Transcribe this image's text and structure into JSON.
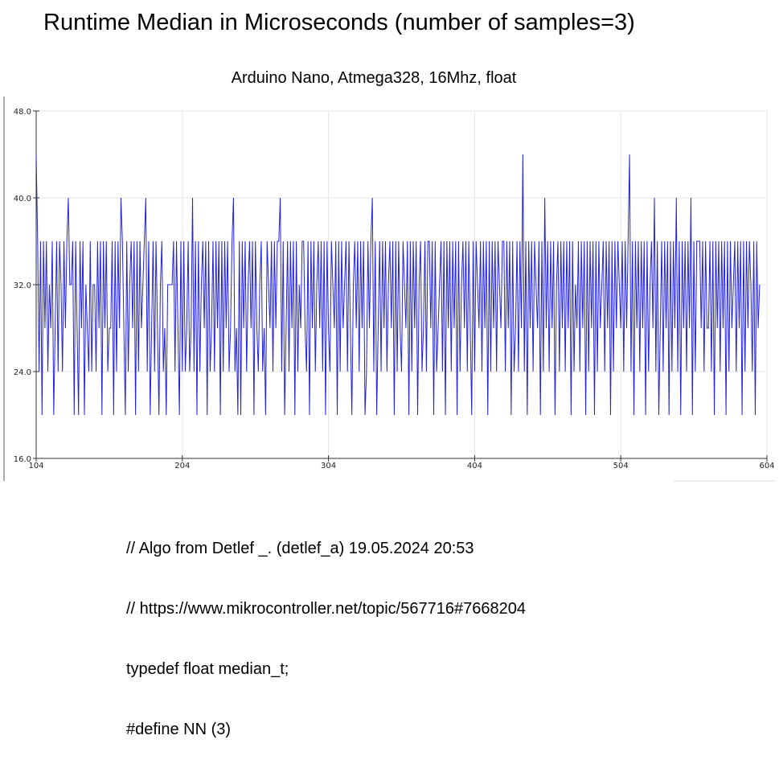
{
  "page": {
    "title": "Runtime Median in Microseconds (number of samples=3)"
  },
  "chart_data": {
    "type": "line",
    "title": "Arduino Nano, Atmega328, 16Mhz, float",
    "xlabel": "",
    "ylabel": "",
    "xlim": [
      104,
      604
    ],
    "ylim": [
      16,
      48
    ],
    "x_ticks": [
      "104",
      "204",
      "304",
      "404",
      "504",
      "604"
    ],
    "y_ticks": [
      "16.0",
      "24.0",
      "32.0",
      "40.0",
      "48.0"
    ],
    "grid": true,
    "line_color": "#2222dd",
    "series": [
      {
        "x_start": 104,
        "x_step": 1,
        "values": [
          44,
          36,
          24,
          36,
          20,
          36,
          28,
          36,
          24,
          32,
          28,
          36,
          20,
          28,
          36,
          24,
          36,
          32,
          24,
          36,
          28,
          36,
          40,
          32,
          32,
          36,
          20,
          36,
          28,
          20,
          36,
          28,
          36,
          20,
          32,
          28,
          24,
          36,
          24,
          32,
          32,
          24,
          36,
          28,
          36,
          20,
          36,
          28,
          36,
          24,
          28,
          28,
          36,
          20,
          36,
          24,
          36,
          28,
          40,
          36,
          28,
          20,
          36,
          24,
          32,
          36,
          28,
          36,
          20,
          36,
          24,
          36,
          28,
          32,
          36,
          40,
          24,
          36,
          20,
          28,
          36,
          24,
          36,
          28,
          20,
          32,
          36,
          24,
          28,
          20,
          32,
          32,
          32,
          32,
          36,
          24,
          36,
          28,
          20,
          36,
          24,
          36,
          24,
          28,
          36,
          24,
          28,
          40,
          24,
          36,
          20,
          36,
          24,
          32,
          36,
          28,
          36,
          20,
          36,
          24,
          28,
          36,
          24,
          36,
          28,
          36,
          20,
          36,
          24,
          36,
          28,
          36,
          24,
          28,
          36,
          40,
          24,
          28,
          20,
          36,
          20,
          36,
          28,
          36,
          24,
          32,
          36,
          28,
          36,
          20,
          36,
          28,
          24,
          32,
          36,
          24,
          28,
          20,
          36,
          32,
          28,
          36,
          24,
          36,
          28,
          36,
          36,
          40,
          24,
          36,
          20,
          28,
          36,
          24,
          36,
          28,
          36,
          20,
          36,
          24,
          32,
          28,
          36,
          36,
          28,
          24,
          36,
          20,
          36,
          28,
          36,
          24,
          32,
          36,
          28,
          36,
          24,
          36,
          20,
          36,
          28,
          24,
          36,
          32,
          28,
          36,
          20,
          36,
          24,
          36,
          28,
          32,
          36,
          24,
          36,
          28,
          20,
          32,
          36,
          28,
          36,
          24,
          36,
          28,
          36,
          20,
          24,
          36,
          28,
          36,
          40,
          24,
          36,
          20,
          28,
          36,
          24,
          36,
          28,
          36,
          24,
          32,
          36,
          28,
          36,
          20,
          36,
          24,
          36,
          28,
          24,
          36,
          32,
          28,
          36,
          20,
          36,
          24,
          36,
          28,
          36,
          20,
          32,
          36,
          24,
          28,
          36,
          24,
          36,
          36,
          28,
          36,
          20,
          36,
          24,
          28,
          32,
          36,
          24,
          36,
          20,
          36,
          28,
          36,
          24,
          36,
          28,
          36,
          20,
          36,
          24,
          32,
          36,
          28,
          36,
          24,
          36,
          28,
          20,
          36,
          24,
          36,
          32,
          28,
          36,
          24,
          36,
          28,
          36,
          20,
          36,
          24,
          36,
          28,
          36,
          24,
          36,
          32,
          28,
          36,
          36,
          24,
          36,
          28,
          36,
          20,
          36,
          24,
          28,
          36,
          24,
          36,
          28,
          44,
          24,
          36,
          20,
          36,
          28,
          36,
          24,
          36,
          32,
          28,
          36,
          20,
          36,
          24,
          40,
          28,
          36,
          24,
          36,
          28,
          36,
          20,
          32,
          36,
          24,
          36,
          28,
          36,
          24,
          36,
          28,
          36,
          20,
          36,
          24,
          32,
          28,
          36,
          24,
          36,
          28,
          36,
          20,
          36,
          24,
          36,
          28,
          36,
          20,
          36,
          24,
          36,
          28,
          32,
          36,
          24,
          36,
          28,
          36,
          20,
          36,
          24,
          36,
          28,
          36,
          32,
          28,
          36,
          24,
          36,
          28,
          36,
          44,
          24,
          36,
          20,
          36,
          28,
          36,
          24,
          36,
          28,
          36,
          20,
          36,
          24,
          32,
          36,
          28,
          40,
          24,
          36,
          20,
          28,
          36,
          24,
          36,
          28,
          36,
          20,
          36,
          24,
          36,
          28,
          40,
          24,
          36,
          20,
          36,
          28,
          36,
          24,
          36,
          28,
          40,
          20,
          36,
          24,
          36,
          36,
          36,
          28,
          36,
          24,
          36,
          28,
          28,
          36,
          24,
          36,
          20,
          36,
          28,
          36,
          24,
          36,
          28,
          36,
          20,
          36,
          24,
          36,
          28,
          32,
          36,
          24,
          36,
          28,
          36,
          20,
          36,
          24,
          36,
          28,
          36,
          32,
          24,
          36,
          20,
          36,
          28,
          32
        ]
      }
    ]
  },
  "code_lines": [
    "// Algo from Detlef _. (detlef_a) 19.05.2024 20:53",
    "// https://www.mikrocontroller.net/topic/567716#7668204",
    "typedef float median_t;",
    "#define NN (3)"
  ]
}
